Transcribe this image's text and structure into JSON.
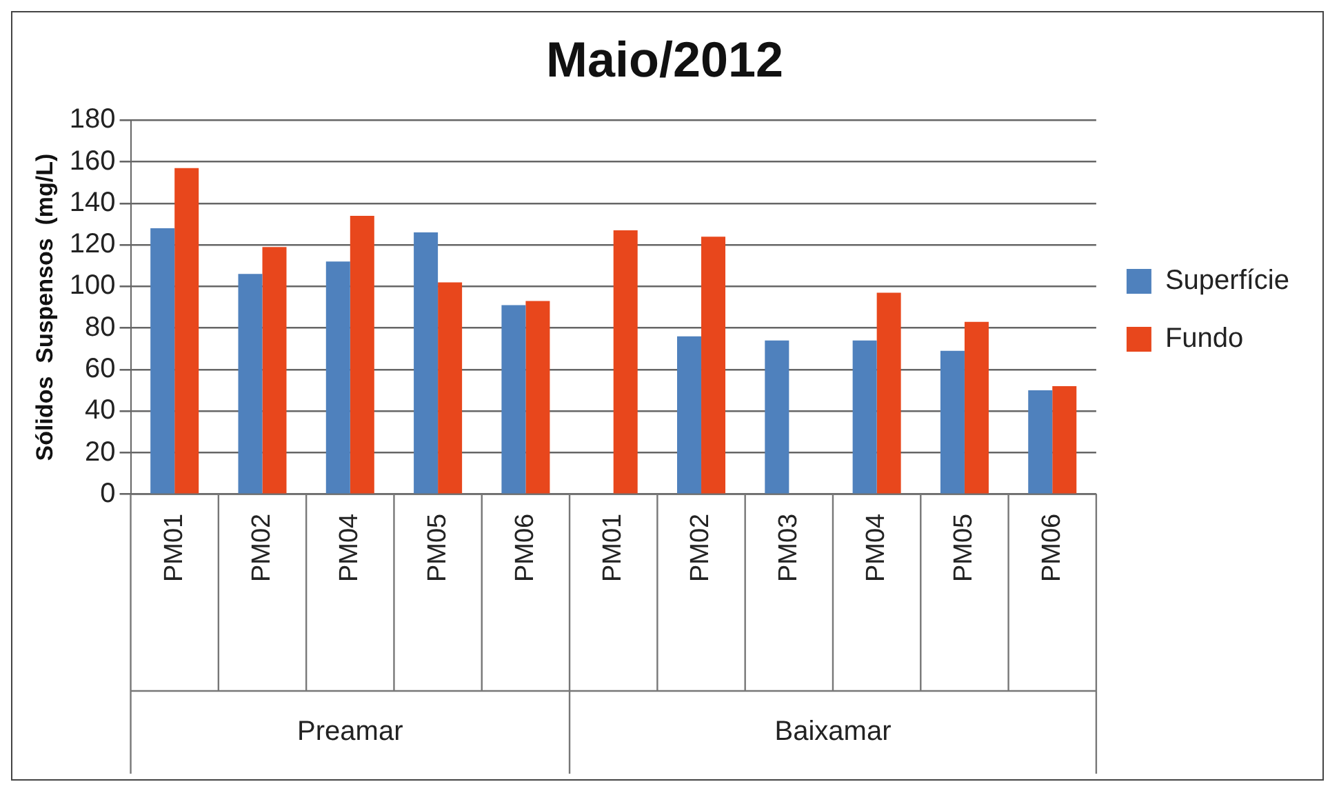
{
  "chart_data": {
    "type": "bar",
    "title": "Maio/2012",
    "ylabel": "Sólidos  Suspensos  (mg/L)",
    "categories": [
      "PM01",
      "PM02",
      "PM04",
      "PM05",
      "PM06",
      "PM01",
      "PM02",
      "PM03",
      "PM04",
      "PM05",
      "PM06"
    ],
    "series": [
      {
        "name": "Superfície",
        "color": "#4f81bd",
        "values": [
          128,
          106,
          112,
          126,
          91,
          null,
          76,
          74,
          74,
          69,
          50
        ]
      },
      {
        "name": "Fundo",
        "color": "#e8471c",
        "values": [
          157,
          119,
          134,
          102,
          93,
          127,
          124,
          null,
          97,
          83,
          52
        ]
      }
    ],
    "annotations": [
      "Preamar",
      "Baixamar"
    ],
    "ylim": [
      0,
      180
    ],
    "yticks": [
      0,
      20,
      40,
      60,
      80,
      100,
      120,
      140,
      160,
      180
    ],
    "grid": "y",
    "legend": "right"
  }
}
